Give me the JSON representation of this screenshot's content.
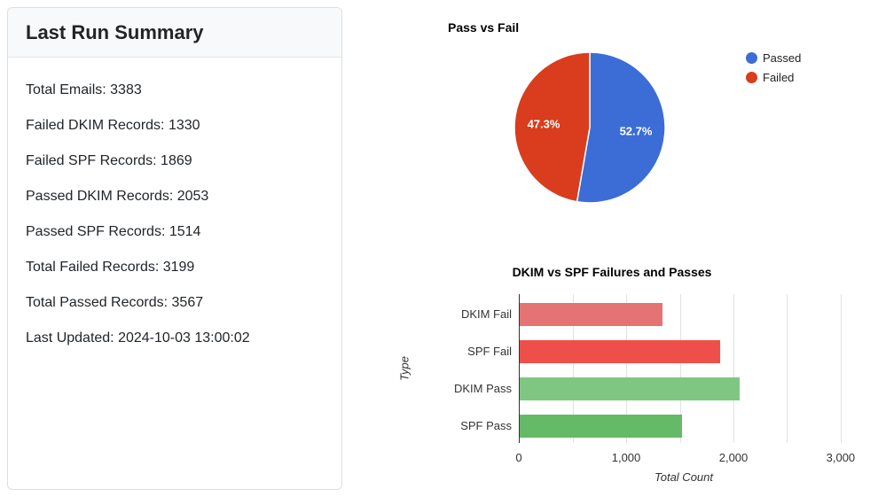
{
  "summary_card": {
    "title": "Last Run Summary",
    "stats": [
      "Total Emails: 3383",
      "Failed DKIM Records: 1330",
      "Failed SPF Records: 1869",
      "Passed DKIM Records: 2053",
      "Passed SPF Records: 1514",
      "Total Failed Records: 3199",
      "Total Passed Records: 3567",
      "Last Updated: 2024-10-03 13:00:02"
    ]
  },
  "chart_data": [
    {
      "type": "pie",
      "title": "Pass vs Fail",
      "labels": [
        "Passed",
        "Failed"
      ],
      "values": [
        3567,
        3199
      ],
      "percent_labels": [
        "52.7%",
        "47.3%"
      ],
      "colors": [
        "#3c6cd6",
        "#d93d1e"
      ],
      "legend_position": "right",
      "start_angle": "top",
      "direction": "clockwise",
      "slice_label_color": "#ffffff"
    },
    {
      "type": "bar",
      "orientation": "horizontal",
      "title": "DKIM vs SPF Failures and Passes",
      "categories": [
        "DKIM Fail",
        "SPF Fail",
        "DKIM Pass",
        "SPF Pass"
      ],
      "values": [
        1330,
        1869,
        2053,
        1514
      ],
      "colors": [
        "#e57373",
        "#ee5049",
        "#80c683",
        "#64ba66"
      ],
      "xlabel": "Total Count",
      "ylabel": "Type",
      "xlim": [
        0,
        3075
      ],
      "xticks": [
        0,
        1000,
        2000,
        3000
      ],
      "xtick_labels": [
        "0",
        "1,000",
        "2,000",
        "3,000"
      ],
      "grid": true,
      "gridline_step": 500,
      "axis_color": "#333333",
      "grid_color": "#e2e2e2"
    }
  ]
}
